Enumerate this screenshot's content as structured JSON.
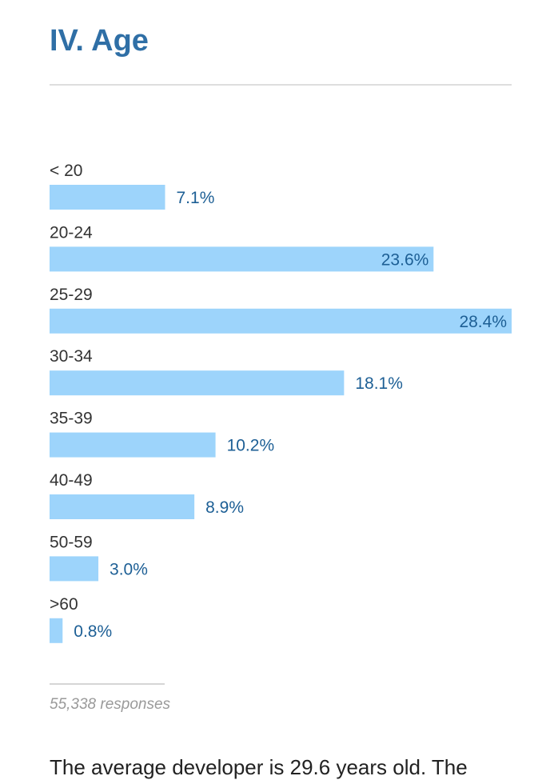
{
  "heading": "IV. Age",
  "responses_text": "55,338 responses",
  "bottom_text": "The average developer is 29.6 years old. The",
  "colors": {
    "heading": "#2f6fa6",
    "bar": "#9dd4fb",
    "value_label": "#1d5f95"
  },
  "chart_data": {
    "type": "bar",
    "orientation": "horizontal",
    "categories": [
      "< 20",
      "20-24",
      "25-29",
      "30-34",
      "35-39",
      "40-49",
      "50-59",
      ">60"
    ],
    "values": [
      7.1,
      23.6,
      28.4,
      18.1,
      10.2,
      8.9,
      3.0,
      0.8
    ],
    "value_labels": [
      "7.1%",
      "23.6%",
      "28.4%",
      "18.1%",
      "10.2%",
      "8.9%",
      "3.0%",
      "0.8%"
    ],
    "unit": "%",
    "xlim": [
      0,
      28.4
    ],
    "grid": false
  }
}
